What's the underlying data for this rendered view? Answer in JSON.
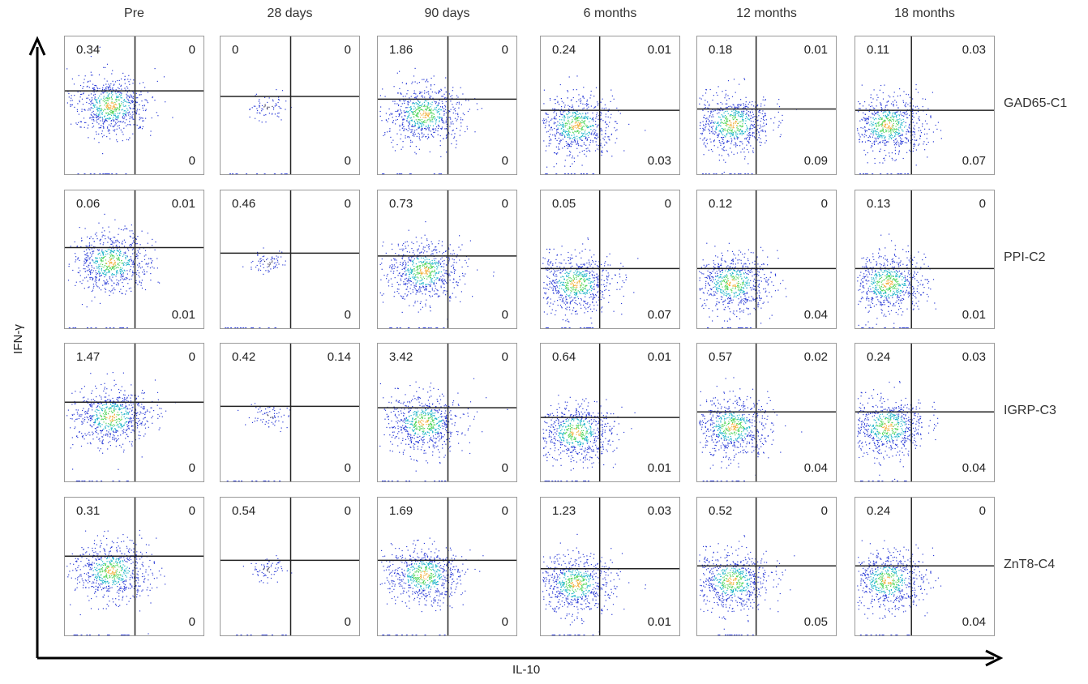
{
  "chart_data": {
    "type": "scatter",
    "description_kind": "flow-cytometry-grid",
    "xlabel": "IL-10",
    "ylabel": "IFN-γ",
    "columns": [
      "Pre",
      "28 days",
      "90 days",
      "6 months",
      "12 months",
      "18 months"
    ],
    "rows": [
      {
        "name": "GAD65-C1",
        "panels": [
          {
            "ul": "0.34",
            "ur": "0",
            "lr": "0",
            "density": "high",
            "gate": 0.39
          },
          {
            "ul": "0",
            "ur": "0",
            "lr": "0",
            "density": "low",
            "gate": 0.43
          },
          {
            "ul": "1.86",
            "ur": "0",
            "lr": "0",
            "density": "high",
            "gate": 0.45
          },
          {
            "ul": "0.24",
            "ur": "0.01",
            "lr": "0.03",
            "density": "high",
            "gate": 0.53
          },
          {
            "ul": "0.18",
            "ur": "0.01",
            "lr": "0.09",
            "density": "high",
            "gate": 0.52
          },
          {
            "ul": "0.11",
            "ur": "0.03",
            "lr": "0.07",
            "density": "high",
            "gate": 0.53
          }
        ]
      },
      {
        "name": "PPI-C2",
        "panels": [
          {
            "ul": "0.06",
            "ur": "0.01",
            "lr": "0.01",
            "density": "high",
            "gate": 0.41
          },
          {
            "ul": "0.46",
            "ur": "0",
            "lr": "0",
            "density": "low",
            "gate": 0.45
          },
          {
            "ul": "0.73",
            "ur": "0",
            "lr": "0",
            "density": "high",
            "gate": 0.47
          },
          {
            "ul": "0.05",
            "ur": "0",
            "lr": "0.07",
            "density": "high",
            "gate": 0.56
          },
          {
            "ul": "0.12",
            "ur": "0",
            "lr": "0.04",
            "density": "high",
            "gate": 0.56
          },
          {
            "ul": "0.13",
            "ur": "0",
            "lr": "0.01",
            "density": "high",
            "gate": 0.56
          }
        ]
      },
      {
        "name": "IGRP-C3",
        "panels": [
          {
            "ul": "1.47",
            "ur": "0",
            "lr": "0",
            "density": "high",
            "gate": 0.42
          },
          {
            "ul": "0.42",
            "ur": "0.14",
            "lr": "0",
            "density": "low",
            "gate": 0.45
          },
          {
            "ul": "3.42",
            "ur": "0",
            "lr": "0",
            "density": "high",
            "gate": 0.46
          },
          {
            "ul": "0.64",
            "ur": "0.01",
            "lr": "0.01",
            "density": "high",
            "gate": 0.53
          },
          {
            "ul": "0.57",
            "ur": "0.02",
            "lr": "0.04",
            "density": "high",
            "gate": 0.49
          },
          {
            "ul": "0.24",
            "ur": "0.03",
            "lr": "0.04",
            "density": "high",
            "gate": 0.49
          }
        ]
      },
      {
        "name": "ZnT8-C4",
        "panels": [
          {
            "ul": "0.31",
            "ur": "0",
            "lr": "0",
            "density": "high",
            "gate": 0.42
          },
          {
            "ul": "0.54",
            "ur": "0",
            "lr": "0",
            "density": "low",
            "gate": 0.45
          },
          {
            "ul": "1.69",
            "ur": "0",
            "lr": "0",
            "density": "high",
            "gate": 0.45
          },
          {
            "ul": "1.23",
            "ur": "0.03",
            "lr": "0.01",
            "density": "high",
            "gate": 0.51
          },
          {
            "ul": "0.52",
            "ur": "0",
            "lr": "0.05",
            "density": "high",
            "gate": 0.49
          },
          {
            "ul": "0.24",
            "ur": "0",
            "lr": "0.04",
            "density": "high",
            "gate": 0.49
          }
        ]
      }
    ],
    "colors": {
      "low": "#2a3bd6",
      "mid": "#19b3c8",
      "high": "#4fd65a",
      "peak": "#f2b03a",
      "gate": "#222222",
      "frame": "#9a9a9a"
    }
  }
}
